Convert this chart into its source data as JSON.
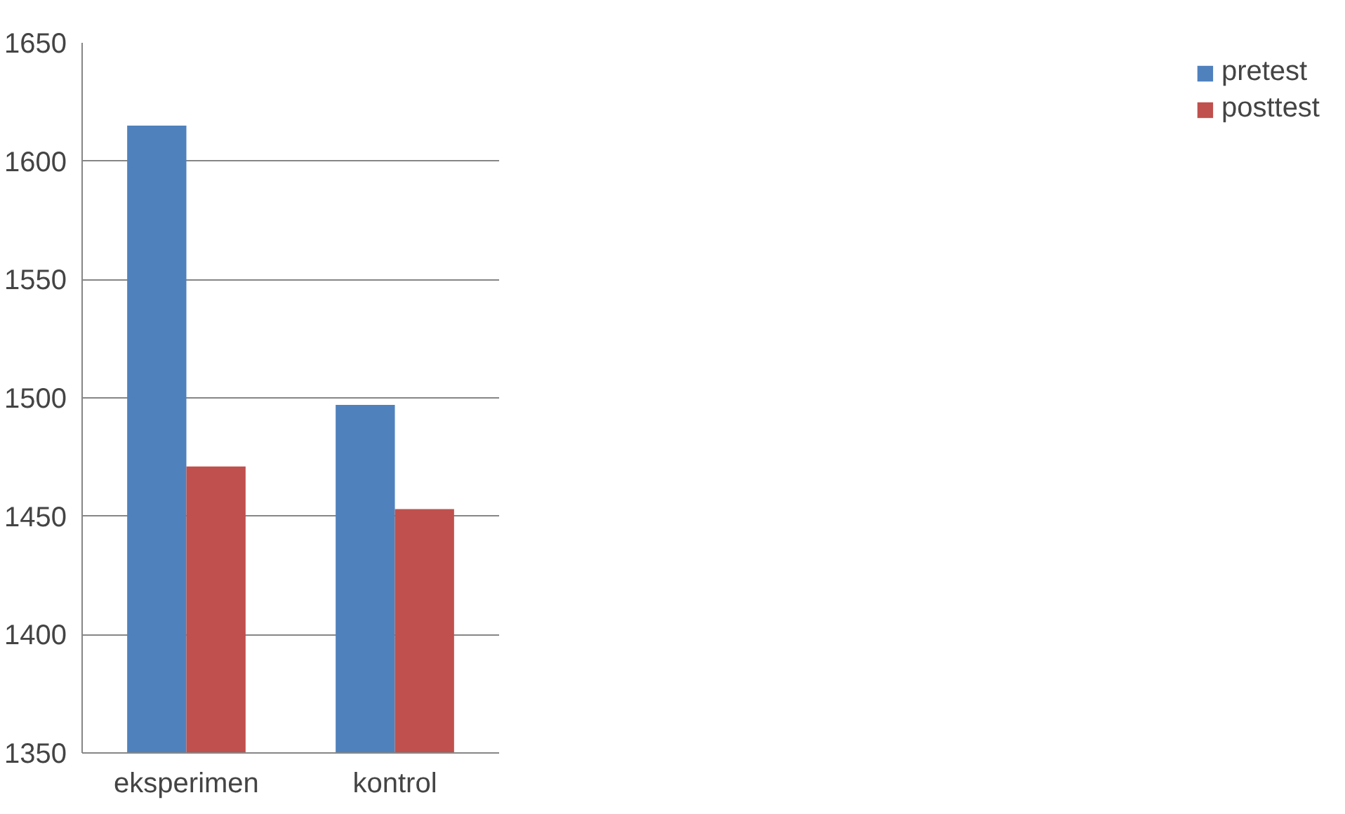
{
  "chart_data": {
    "type": "bar",
    "categories": [
      "eksperimen",
      "kontrol"
    ],
    "series": [
      {
        "name": "pretest",
        "color": "#4f81bd",
        "values": [
          1615,
          1497
        ]
      },
      {
        "name": "posttest",
        "color": "#c0504d",
        "values": [
          1471,
          1453
        ]
      }
    ],
    "ylim": [
      1350,
      1650
    ],
    "yticks": [
      1350,
      1400,
      1450,
      1500,
      1550,
      1600,
      1650
    ],
    "grid": "y",
    "legend": "right"
  }
}
